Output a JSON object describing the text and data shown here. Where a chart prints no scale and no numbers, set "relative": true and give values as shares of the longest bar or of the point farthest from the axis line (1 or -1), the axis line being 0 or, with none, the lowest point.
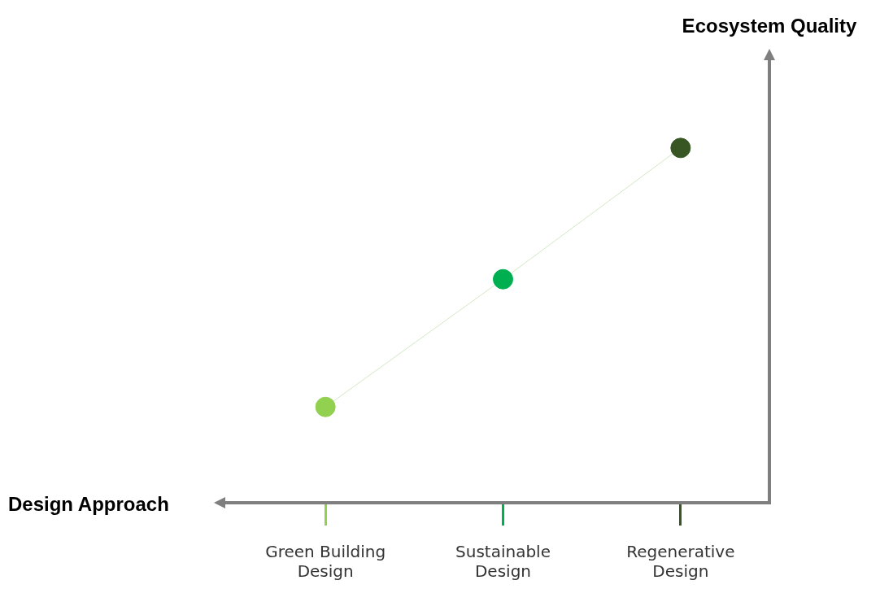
{
  "chart_data": {
    "type": "line",
    "xlabel": "Design Approach",
    "annotations": [
      "Ecosystem Quality"
    ],
    "relative": true,
    "categories": [
      "Green Building Design",
      "Sustainable Design",
      "Regenerative Design"
    ],
    "series": [
      {
        "color": "#d3e8c4",
        "colors": [
          "#92d050",
          "#00b050",
          "#375623"
        ],
        "values": [
          0.27,
          0.63,
          1
        ]
      }
    ],
    "marker": "circle",
    "grid": false,
    "legend": false
  }
}
